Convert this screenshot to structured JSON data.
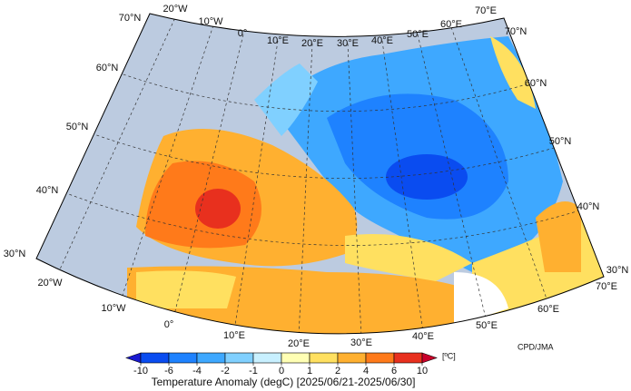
{
  "map": {
    "top_labels": [
      "70°N",
      "20°W",
      "10°W",
      "0°",
      "10°E",
      "20°E",
      "30°E",
      "40°E",
      "50°E",
      "60°E",
      "70°E"
    ],
    "left_labels": [
      "60°N",
      "50°N",
      "40°N",
      "30°N"
    ],
    "right_labels": [
      "70°N",
      "60°N",
      "50°N",
      "40°N",
      "30°N"
    ],
    "bottom_labels": [
      "20°W",
      "10°W",
      "0°",
      "10°E",
      "20°E",
      "30°E",
      "40°E",
      "50°E",
      "60°E",
      "70°E"
    ]
  },
  "colorbar": {
    "ticks": [
      -10,
      -6,
      -4,
      -2,
      -1,
      0,
      1,
      2,
      4,
      6,
      10
    ],
    "colors": [
      "#1a1ad0",
      "#0a4cf0",
      "#1e82ff",
      "#3ea8ff",
      "#80d0ff",
      "#c8f0ff",
      "#ffffb4",
      "#ffe060",
      "#ffb030",
      "#ff7a1a",
      "#e8301e",
      "#c8002a"
    ],
    "unit": "[ºC]",
    "title": "Temperature Anomaly (degC) [2025/06/21-2025/06/30]"
  },
  "credit": "CPD/JMA"
}
